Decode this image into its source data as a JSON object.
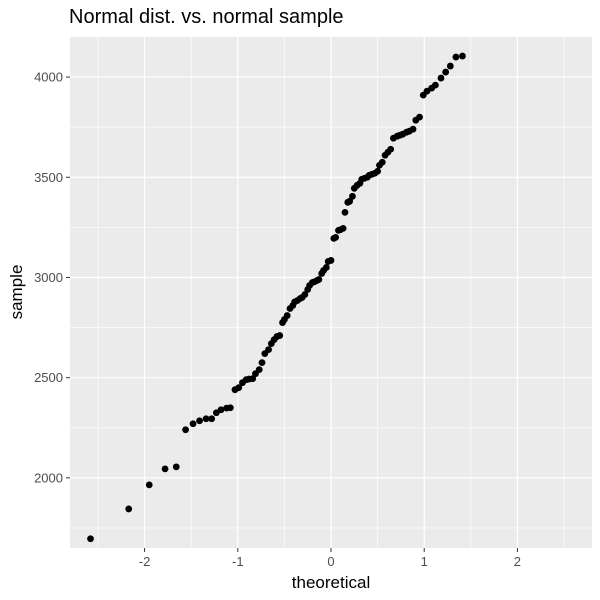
{
  "chart_data": {
    "type": "scatter",
    "title": "Normal dist. vs. normal sample",
    "xlabel": "theoretical",
    "ylabel": "sample",
    "xlim": [
      -2.8,
      2.8
    ],
    "ylim": [
      1650,
      4200
    ],
    "x_ticks": [
      -2,
      -1,
      0,
      1,
      2
    ],
    "x_tick_labels": [
      "-2",
      "-1",
      "0",
      "1",
      "2"
    ],
    "y_ticks": [
      2000,
      2500,
      3000,
      3500,
      4000
    ],
    "y_tick_labels": [
      "2000",
      "2500",
      "3000",
      "3500",
      "4000"
    ],
    "grid": true,
    "legend": "none",
    "points": [
      [
        -2.58,
        1696
      ],
      [
        -2.17,
        1845
      ],
      [
        -1.95,
        1965
      ],
      [
        -1.78,
        2045
      ],
      [
        -1.66,
        2055
      ],
      [
        -1.56,
        2240
      ],
      [
        -1.48,
        2270
      ],
      [
        -1.41,
        2285
      ],
      [
        -1.34,
        2295
      ],
      [
        -1.28,
        2295
      ],
      [
        -1.23,
        2325
      ],
      [
        -1.18,
        2340
      ],
      [
        -1.12,
        2348
      ],
      [
        -1.08,
        2350
      ],
      [
        -1.03,
        2440
      ],
      [
        -0.99,
        2450
      ],
      [
        -0.95,
        2475
      ],
      [
        -0.91,
        2490
      ],
      [
        -0.88,
        2493
      ],
      [
        -0.84,
        2495
      ],
      [
        -0.81,
        2520
      ],
      [
        -0.77,
        2540
      ],
      [
        -0.74,
        2575
      ],
      [
        -0.71,
        2620
      ],
      [
        -0.67,
        2640
      ],
      [
        -0.64,
        2670
      ],
      [
        -0.61,
        2690
      ],
      [
        -0.58,
        2705
      ],
      [
        -0.55,
        2710
      ],
      [
        -0.52,
        2775
      ],
      [
        -0.5,
        2790
      ],
      [
        -0.47,
        2810
      ],
      [
        -0.44,
        2845
      ],
      [
        -0.41,
        2860
      ],
      [
        -0.39,
        2878
      ],
      [
        -0.36,
        2885
      ],
      [
        -0.33,
        2895
      ],
      [
        -0.31,
        2900
      ],
      [
        -0.28,
        2915
      ],
      [
        -0.25,
        2940
      ],
      [
        -0.23,
        2960
      ],
      [
        -0.2,
        2975
      ],
      [
        -0.18,
        2978
      ],
      [
        -0.15,
        2985
      ],
      [
        -0.13,
        2990
      ],
      [
        -0.1,
        3020
      ],
      [
        -0.08,
        3035
      ],
      [
        -0.05,
        3050
      ],
      [
        -0.03,
        3080
      ],
      [
        0.0,
        3085
      ],
      [
        0.03,
        3195
      ],
      [
        0.05,
        3200
      ],
      [
        0.08,
        3235
      ],
      [
        0.1,
        3238
      ],
      [
        0.13,
        3245
      ],
      [
        0.15,
        3325
      ],
      [
        0.18,
        3375
      ],
      [
        0.2,
        3380
      ],
      [
        0.23,
        3405
      ],
      [
        0.25,
        3445
      ],
      [
        0.28,
        3460
      ],
      [
        0.31,
        3470
      ],
      [
        0.33,
        3490
      ],
      [
        0.36,
        3495
      ],
      [
        0.39,
        3500
      ],
      [
        0.41,
        3510
      ],
      [
        0.44,
        3515
      ],
      [
        0.47,
        3520
      ],
      [
        0.5,
        3530
      ],
      [
        0.52,
        3560
      ],
      [
        0.55,
        3575
      ],
      [
        0.58,
        3610
      ],
      [
        0.61,
        3625
      ],
      [
        0.64,
        3640
      ],
      [
        0.67,
        3695
      ],
      [
        0.71,
        3705
      ],
      [
        0.74,
        3710
      ],
      [
        0.77,
        3715
      ],
      [
        0.81,
        3725
      ],
      [
        0.84,
        3730
      ],
      [
        0.88,
        3740
      ],
      [
        0.91,
        3785
      ],
      [
        0.95,
        3800
      ],
      [
        0.99,
        3910
      ],
      [
        1.03,
        3930
      ],
      [
        1.08,
        3945
      ],
      [
        1.12,
        3960
      ],
      [
        1.18,
        3995
      ],
      [
        1.23,
        4025
      ],
      [
        1.28,
        4055
      ],
      [
        1.34,
        4100
      ],
      [
        1.41,
        4105
      ]
    ]
  }
}
